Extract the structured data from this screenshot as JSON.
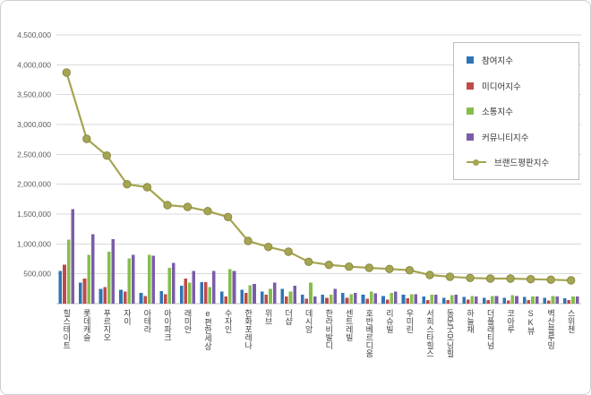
{
  "chart_data": {
    "type": "bar+line",
    "title": "",
    "xlabel": "",
    "ylabel": "",
    "ylim": [
      0,
      4500000
    ],
    "ytick_values": [
      500000,
      1000000,
      1500000,
      2000000,
      2500000,
      3000000,
      3500000,
      4000000,
      4500000
    ],
    "ytick_labels": [
      "500,000",
      "1,000,000",
      "1,500,000",
      "2,000,000",
      "2,500,000",
      "3,000,000",
      "3,500,000",
      "4,000,000",
      "4,500,000"
    ],
    "grid": true,
    "legend_position": "right-inside",
    "categories": [
      "힐스테이트",
      "롯데캐슬",
      "푸르지오",
      "자이",
      "아테라",
      "아이파크",
      "래미안",
      "e편한세상",
      "수자인",
      "한화포레나",
      "위브",
      "더샵",
      "데시앙",
      "한라비발디",
      "센트레빌",
      "호반베르디움",
      "리슈빌",
      "우미린",
      "서희스타힐스",
      "동문굿모닝힐",
      "하늘채",
      "더플래티넘",
      "코아루",
      "SK뷰",
      "벽산블루밍",
      "스위첸"
    ],
    "series": [
      {
        "key": "participation",
        "name": "참여지수",
        "type": "bar",
        "color": "#2E75B6",
        "values": [
          550000,
          350000,
          250000,
          230000,
          180000,
          210000,
          300000,
          360000,
          200000,
          230000,
          200000,
          250000,
          150000,
          150000,
          180000,
          150000,
          130000,
          150000,
          120000,
          100000,
          110000,
          100000,
          100000,
          110000,
          100000,
          90000
        ]
      },
      {
        "key": "media",
        "name": "미디어지수",
        "type": "bar",
        "color": "#BE4B48",
        "values": [
          650000,
          420000,
          280000,
          200000,
          130000,
          160000,
          420000,
          360000,
          120000,
          180000,
          150000,
          120000,
          80000,
          100000,
          100000,
          80000,
          70000,
          90000,
          60000,
          60000,
          70000,
          60000,
          50000,
          60000,
          50000,
          60000
        ]
      },
      {
        "key": "communication",
        "name": "소통지수",
        "type": "bar",
        "color": "#86BE4C",
        "values": [
          1070000,
          820000,
          870000,
          760000,
          820000,
          600000,
          350000,
          280000,
          580000,
          310000,
          250000,
          200000,
          350000,
          150000,
          160000,
          200000,
          180000,
          160000,
          150000,
          140000,
          130000,
          130000,
          140000,
          120000,
          130000,
          120000
        ]
      },
      {
        "key": "community",
        "name": "커뮤니티지수",
        "type": "bar",
        "color": "#7A5DA8",
        "values": [
          1580000,
          1160000,
          1080000,
          820000,
          800000,
          680000,
          550000,
          550000,
          550000,
          330000,
          350000,
          300000,
          120000,
          250000,
          180000,
          170000,
          200000,
          160000,
          150000,
          150000,
          120000,
          130000,
          130000,
          120000,
          120000,
          120000
        ]
      },
      {
        "key": "brand-reputation",
        "name": "브랜드평판지수",
        "type": "line",
        "color": "#A5A552",
        "marker_stroke": "#8A8A45",
        "values": [
          3870000,
          2760000,
          2480000,
          2000000,
          1950000,
          1650000,
          1620000,
          1550000,
          1450000,
          1050000,
          950000,
          870000,
          700000,
          650000,
          620000,
          600000,
          580000,
          560000,
          480000,
          450000,
          430000,
          420000,
          420000,
          410000,
          400000,
          390000
        ]
      }
    ]
  }
}
